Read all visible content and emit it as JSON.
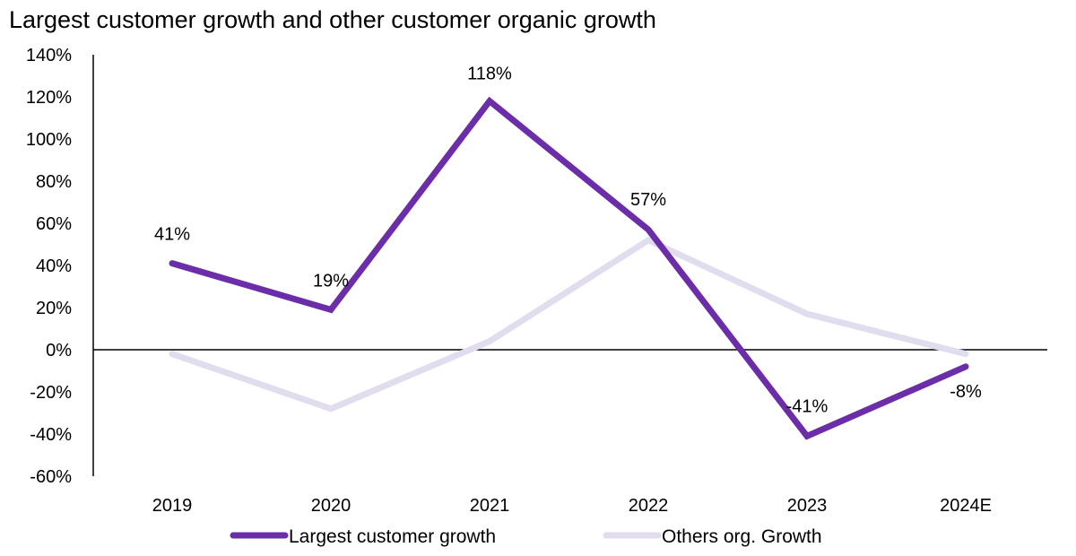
{
  "chart_data": {
    "type": "line",
    "title": "Largest customer growth and other customer organic growth",
    "xlabel": "",
    "ylabel": "",
    "categories": [
      "2019",
      "2020",
      "2021",
      "2022",
      "2023",
      "2024E"
    ],
    "ylim": [
      -60,
      140
    ],
    "yticks": [
      -60,
      -40,
      -20,
      0,
      20,
      40,
      60,
      80,
      100,
      120,
      140
    ],
    "ytick_labels": [
      "-60%",
      "-40%",
      "-20%",
      "0%",
      "20%",
      "40%",
      "60%",
      "80%",
      "100%",
      "120%",
      "140%"
    ],
    "grid": false,
    "legend_position": "bottom",
    "series": [
      {
        "name": "Largest customer growth",
        "color": "#6B2DA8",
        "values": [
          41,
          19,
          118,
          57,
          -41,
          -8
        ],
        "data_labels": [
          "41%",
          "19%",
          "118%",
          "57%",
          "-41%",
          "-8%"
        ]
      },
      {
        "name": "Others org. Growth",
        "color": "#E1DCEE",
        "values": [
          -2,
          -28,
          4,
          52,
          17,
          -2
        ],
        "data_labels": []
      }
    ]
  }
}
